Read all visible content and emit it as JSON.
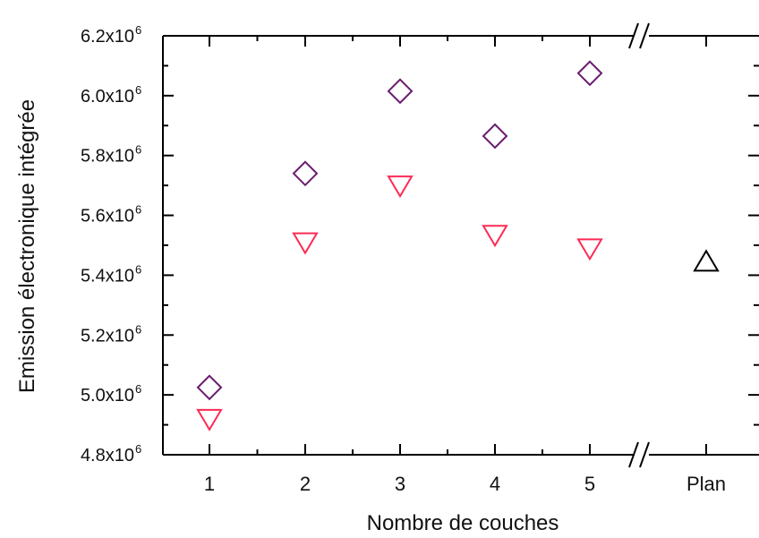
{
  "chart_data": {
    "type": "scatter",
    "xlabel": "Nombre de couches",
    "ylabel": "Emission électronique intégrée",
    "x_categories": [
      "1",
      "2",
      "3",
      "4",
      "5",
      "Plan"
    ],
    "ylim": [
      4800000,
      6200000
    ],
    "y_ticks": [
      {
        "value": 4800000,
        "mantissa": "4.8x10",
        "exp": "6"
      },
      {
        "value": 5000000,
        "mantissa": "5.0x10",
        "exp": "6"
      },
      {
        "value": 5200000,
        "mantissa": "5.2x10",
        "exp": "6"
      },
      {
        "value": 5400000,
        "mantissa": "5.4x10",
        "exp": "6"
      },
      {
        "value": 5600000,
        "mantissa": "5.6x10",
        "exp": "6"
      },
      {
        "value": 5800000,
        "mantissa": "5.8x10",
        "exp": "6"
      },
      {
        "value": 6000000,
        "mantissa": "6.0x10",
        "exp": "6"
      },
      {
        "value": 6200000,
        "mantissa": "6.2x10",
        "exp": "6"
      }
    ],
    "axis_break": "between 5 and Plan",
    "grid": false,
    "series": [
      {
        "marker": "diamond",
        "color": "#6a1b6e",
        "x": [
          "1",
          "2",
          "3",
          "4",
          "5"
        ],
        "y": [
          5025000,
          5740000,
          6015000,
          5865000,
          6075000
        ]
      },
      {
        "marker": "triangle-down",
        "color": "#ff2a55",
        "x": [
          "1",
          "2",
          "3",
          "4",
          "5"
        ],
        "y": [
          4920000,
          5510000,
          5700000,
          5535000,
          5490000
        ]
      },
      {
        "marker": "triangle-up",
        "color": "#000000",
        "x": [
          "Plan"
        ],
        "y": [
          5445000
        ]
      }
    ]
  }
}
